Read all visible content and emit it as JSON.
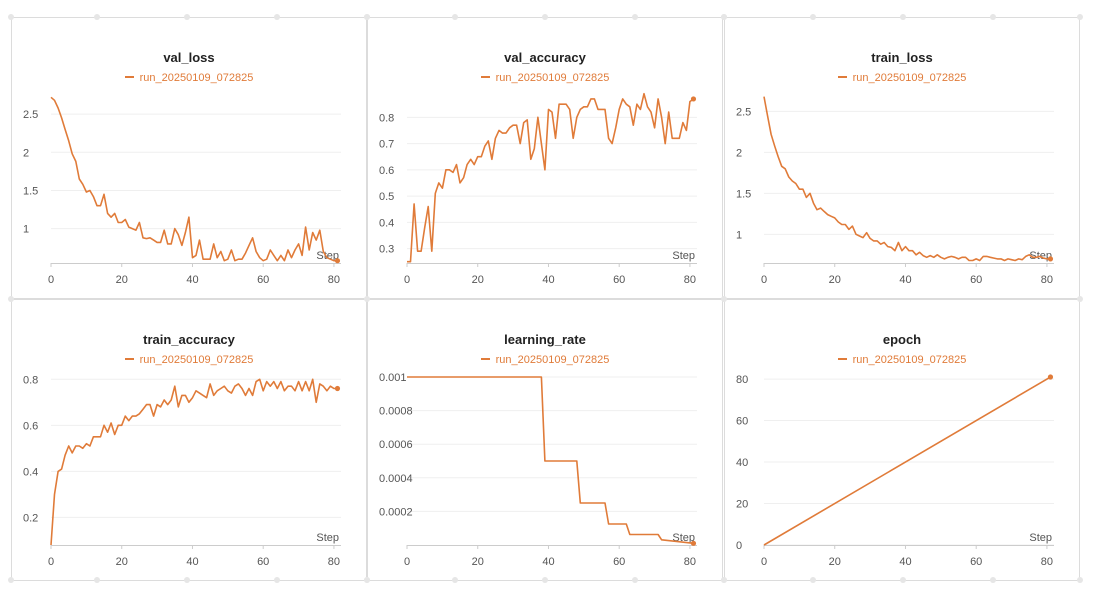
{
  "colors": {
    "series": "#e07b39",
    "grid": "#efefef",
    "axis": "#cccccc",
    "border": "#dcdcdc",
    "tick": "#555555"
  },
  "chart_data": [
    {
      "type": "line",
      "title": "val_loss",
      "xlabel": "Step",
      "ylabel": "",
      "legend": {
        "position": "top-center",
        "entries": [
          "run_20250109_072825"
        ]
      },
      "grid": true,
      "xlim": [
        0,
        82
      ],
      "ylim": [
        0.55,
        2.75
      ],
      "xticks": [
        0,
        20,
        40,
        60,
        80
      ],
      "xtick_labels": [
        "0",
        "20",
        "40",
        "60",
        "80"
      ],
      "yticks": [
        1,
        1.5,
        2,
        2.5
      ],
      "ytick_labels": [
        "1",
        "1.5",
        "2",
        "2.5"
      ],
      "series": [
        {
          "name": "run_20250109_072825",
          "x": [
            0,
            1,
            2,
            3,
            4,
            5,
            6,
            7,
            8,
            9,
            10,
            11,
            12,
            13,
            14,
            15,
            16,
            17,
            18,
            19,
            20,
            21,
            22,
            23,
            24,
            25,
            26,
            27,
            28,
            29,
            30,
            31,
            32,
            33,
            34,
            35,
            36,
            37,
            38,
            39,
            40,
            41,
            42,
            43,
            44,
            45,
            46,
            47,
            48,
            49,
            50,
            51,
            52,
            53,
            54,
            55,
            56,
            57,
            58,
            59,
            60,
            61,
            62,
            63,
            64,
            65,
            66,
            67,
            68,
            69,
            70,
            71,
            72,
            73,
            74,
            75,
            76,
            77,
            78,
            79,
            80,
            81
          ],
          "y": [
            2.72,
            2.68,
            2.58,
            2.45,
            2.3,
            2.15,
            1.98,
            1.88,
            1.65,
            1.58,
            1.48,
            1.5,
            1.42,
            1.3,
            1.3,
            1.45,
            1.2,
            1.15,
            1.2,
            1.08,
            1.08,
            1.12,
            1.02,
            1.0,
            0.98,
            1.08,
            0.88,
            0.87,
            0.88,
            0.85,
            0.82,
            0.82,
            0.98,
            0.8,
            0.8,
            1.0,
            0.92,
            0.78,
            0.95,
            1.15,
            0.62,
            0.65,
            0.85,
            0.6,
            0.6,
            0.6,
            0.8,
            0.62,
            0.7,
            0.58,
            0.6,
            0.72,
            0.58,
            0.6,
            0.6,
            0.68,
            0.78,
            0.88,
            0.7,
            0.62,
            0.58,
            0.6,
            0.72,
            0.65,
            0.58,
            0.65,
            0.58,
            0.72,
            0.62,
            0.72,
            0.8,
            0.65,
            1.02,
            0.72,
            0.95,
            0.85,
            0.98,
            0.7,
            0.62,
            0.6,
            0.58,
            0.58
          ]
        }
      ]
    },
    {
      "type": "line",
      "title": "val_accuracy",
      "xlabel": "Step",
      "ylabel": "",
      "legend": {
        "position": "top-center",
        "entries": [
          "run_20250109_072825"
        ]
      },
      "grid": true,
      "xlim": [
        0,
        82
      ],
      "ylim": [
        0.245,
        0.885
      ],
      "xticks": [
        0,
        20,
        40,
        60,
        80
      ],
      "xtick_labels": [
        "0",
        "20",
        "40",
        "60",
        "80"
      ],
      "yticks": [
        0.3,
        0.4,
        0.5,
        0.6,
        0.7,
        0.8
      ],
      "ytick_labels": [
        "0.3",
        "0.4",
        "0.5",
        "0.6",
        "0.7",
        "0.8"
      ],
      "series": [
        {
          "name": "run_20250109_072825",
          "x": [
            0,
            1,
            2,
            3,
            4,
            5,
            6,
            7,
            8,
            9,
            10,
            11,
            12,
            13,
            14,
            15,
            16,
            17,
            18,
            19,
            20,
            21,
            22,
            23,
            24,
            25,
            26,
            27,
            28,
            29,
            30,
            31,
            32,
            33,
            34,
            35,
            36,
            37,
            38,
            39,
            40,
            41,
            42,
            43,
            44,
            45,
            46,
            47,
            48,
            49,
            50,
            51,
            52,
            53,
            54,
            55,
            56,
            57,
            58,
            59,
            60,
            61,
            62,
            63,
            64,
            65,
            66,
            67,
            68,
            69,
            70,
            71,
            72,
            73,
            74,
            75,
            76,
            77,
            78,
            79,
            80,
            81
          ],
          "y": [
            0.25,
            0.25,
            0.47,
            0.29,
            0.29,
            0.38,
            0.46,
            0.29,
            0.51,
            0.55,
            0.53,
            0.6,
            0.6,
            0.59,
            0.62,
            0.55,
            0.57,
            0.62,
            0.64,
            0.62,
            0.65,
            0.65,
            0.69,
            0.71,
            0.64,
            0.72,
            0.75,
            0.74,
            0.74,
            0.76,
            0.77,
            0.77,
            0.7,
            0.78,
            0.79,
            0.64,
            0.68,
            0.8,
            0.7,
            0.6,
            0.83,
            0.82,
            0.72,
            0.85,
            0.85,
            0.85,
            0.83,
            0.72,
            0.8,
            0.83,
            0.84,
            0.84,
            0.87,
            0.87,
            0.83,
            0.83,
            0.83,
            0.72,
            0.7,
            0.76,
            0.83,
            0.87,
            0.85,
            0.84,
            0.77,
            0.85,
            0.83,
            0.89,
            0.84,
            0.82,
            0.76,
            0.87,
            0.8,
            0.7,
            0.82,
            0.72,
            0.72,
            0.72,
            0.78,
            0.75,
            0.86,
            0.87
          ]
        }
      ]
    },
    {
      "type": "line",
      "title": "train_loss",
      "xlabel": "Step",
      "ylabel": "",
      "legend": {
        "position": "top-center",
        "entries": [
          "run_20250109_072825"
        ]
      },
      "grid": true,
      "xlim": [
        0,
        82
      ],
      "ylim": [
        0.65,
        2.7
      ],
      "xticks": [
        0,
        20,
        40,
        60,
        80
      ],
      "xtick_labels": [
        "0",
        "20",
        "40",
        "60",
        "80"
      ],
      "yticks": [
        1,
        1.5,
        2,
        2.5
      ],
      "ytick_labels": [
        "1",
        "1.5",
        "2",
        "2.5"
      ],
      "series": [
        {
          "name": "run_20250109_072825",
          "x": [
            0,
            1,
            2,
            3,
            4,
            5,
            6,
            7,
            8,
            9,
            10,
            11,
            12,
            13,
            14,
            15,
            16,
            17,
            18,
            19,
            20,
            21,
            22,
            23,
            24,
            25,
            26,
            27,
            28,
            29,
            30,
            31,
            32,
            33,
            34,
            35,
            36,
            37,
            38,
            39,
            40,
            41,
            42,
            43,
            44,
            45,
            46,
            47,
            48,
            49,
            50,
            51,
            52,
            53,
            54,
            55,
            56,
            57,
            58,
            59,
            60,
            61,
            62,
            63,
            64,
            65,
            66,
            67,
            68,
            69,
            70,
            71,
            72,
            73,
            74,
            75,
            76,
            77,
            78,
            79,
            80,
            81
          ],
          "y": [
            2.68,
            2.45,
            2.22,
            2.08,
            1.95,
            1.83,
            1.8,
            1.7,
            1.65,
            1.62,
            1.55,
            1.55,
            1.45,
            1.5,
            1.38,
            1.3,
            1.32,
            1.28,
            1.24,
            1.22,
            1.2,
            1.15,
            1.12,
            1.12,
            1.06,
            1.1,
            1.0,
            0.98,
            0.96,
            1.02,
            0.95,
            0.92,
            0.92,
            0.88,
            0.9,
            0.85,
            0.84,
            0.8,
            0.9,
            0.8,
            0.85,
            0.8,
            0.8,
            0.75,
            0.78,
            0.74,
            0.72,
            0.74,
            0.72,
            0.75,
            0.72,
            0.7,
            0.72,
            0.73,
            0.72,
            0.7,
            0.72,
            0.72,
            0.68,
            0.68,
            0.7,
            0.68,
            0.73,
            0.73,
            0.72,
            0.71,
            0.7,
            0.7,
            0.68,
            0.7,
            0.69,
            0.68,
            0.7,
            0.69,
            0.73,
            0.75,
            0.72,
            0.72,
            0.73,
            0.71,
            0.7,
            0.7
          ]
        }
      ]
    },
    {
      "type": "line",
      "title": "train_accuracy",
      "xlabel": "Step",
      "ylabel": "",
      "legend": {
        "position": "top-center",
        "entries": [
          "run_20250109_072825"
        ]
      },
      "grid": true,
      "xlim": [
        0,
        82
      ],
      "ylim": [
        0.08,
        0.81
      ],
      "xticks": [
        0,
        20,
        40,
        60,
        80
      ],
      "xtick_labels": [
        "0",
        "20",
        "40",
        "60",
        "80"
      ],
      "yticks": [
        0.2,
        0.4,
        0.6,
        0.8
      ],
      "ytick_labels": [
        "0.2",
        "0.4",
        "0.6",
        "0.8"
      ],
      "series": [
        {
          "name": "run_20250109_072825",
          "x": [
            0,
            1,
            2,
            3,
            4,
            5,
            6,
            7,
            8,
            9,
            10,
            11,
            12,
            13,
            14,
            15,
            16,
            17,
            18,
            19,
            20,
            21,
            22,
            23,
            24,
            25,
            26,
            27,
            28,
            29,
            30,
            31,
            32,
            33,
            34,
            35,
            36,
            37,
            38,
            39,
            40,
            41,
            42,
            43,
            44,
            45,
            46,
            47,
            48,
            49,
            50,
            51,
            52,
            53,
            54,
            55,
            56,
            57,
            58,
            59,
            60,
            61,
            62,
            63,
            64,
            65,
            66,
            67,
            68,
            69,
            70,
            71,
            72,
            73,
            74,
            75,
            76,
            77,
            78,
            79,
            80,
            81
          ],
          "y": [
            0.08,
            0.3,
            0.4,
            0.41,
            0.47,
            0.51,
            0.48,
            0.51,
            0.51,
            0.5,
            0.52,
            0.51,
            0.55,
            0.55,
            0.55,
            0.6,
            0.57,
            0.61,
            0.56,
            0.6,
            0.6,
            0.64,
            0.62,
            0.64,
            0.64,
            0.65,
            0.67,
            0.69,
            0.69,
            0.64,
            0.69,
            0.68,
            0.71,
            0.69,
            0.71,
            0.77,
            0.68,
            0.73,
            0.73,
            0.7,
            0.72,
            0.75,
            0.74,
            0.73,
            0.72,
            0.78,
            0.73,
            0.75,
            0.76,
            0.77,
            0.75,
            0.74,
            0.77,
            0.78,
            0.76,
            0.73,
            0.76,
            0.73,
            0.79,
            0.8,
            0.75,
            0.79,
            0.77,
            0.79,
            0.76,
            0.79,
            0.75,
            0.77,
            0.77,
            0.75,
            0.79,
            0.75,
            0.79,
            0.75,
            0.8,
            0.7,
            0.78,
            0.77,
            0.75,
            0.77,
            0.76,
            0.76
          ]
        }
      ]
    },
    {
      "type": "line",
      "title": "learning_rate",
      "xlabel": "Step",
      "ylabel": "",
      "legend": {
        "position": "top-center",
        "entries": [
          "run_20250109_072825"
        ]
      },
      "grid": true,
      "xlim": [
        0,
        82
      ],
      "ylim": [
        0,
        0.001
      ],
      "xticks": [
        0,
        20,
        40,
        60,
        80
      ],
      "xtick_labels": [
        "0",
        "20",
        "40",
        "60",
        "80"
      ],
      "yticks": [
        0.0002,
        0.0004,
        0.0006,
        0.0008,
        0.001
      ],
      "ytick_labels": [
        "0.0002",
        "0.0004",
        "0.0006",
        "0.0008",
        "0.001"
      ],
      "series": [
        {
          "name": "run_20250109_072825",
          "x": [
            0,
            38,
            39,
            48,
            49,
            56,
            57,
            62,
            63,
            71,
            72,
            81
          ],
          "y": [
            0.001,
            0.001,
            0.0005,
            0.0005,
            0.00025,
            0.00025,
            0.000125,
            0.000125,
            6.25e-05,
            6.25e-05,
            3.125e-05,
            1e-05
          ]
        }
      ]
    },
    {
      "type": "line",
      "title": "epoch",
      "xlabel": "Step",
      "ylabel": "",
      "legend": {
        "position": "top-center",
        "entries": [
          "run_20250109_072825"
        ]
      },
      "grid": true,
      "xlim": [
        0,
        82
      ],
      "ylim": [
        0,
        81
      ],
      "xticks": [
        0,
        20,
        40,
        60,
        80
      ],
      "xtick_labels": [
        "0",
        "20",
        "40",
        "60",
        "80"
      ],
      "yticks": [
        0,
        20,
        40,
        60,
        80
      ],
      "ytick_labels": [
        "0",
        "20",
        "40",
        "60",
        "80"
      ],
      "series": [
        {
          "name": "run_20250109_072825",
          "x": [
            0,
            81
          ],
          "y": [
            0,
            81
          ]
        }
      ]
    }
  ]
}
